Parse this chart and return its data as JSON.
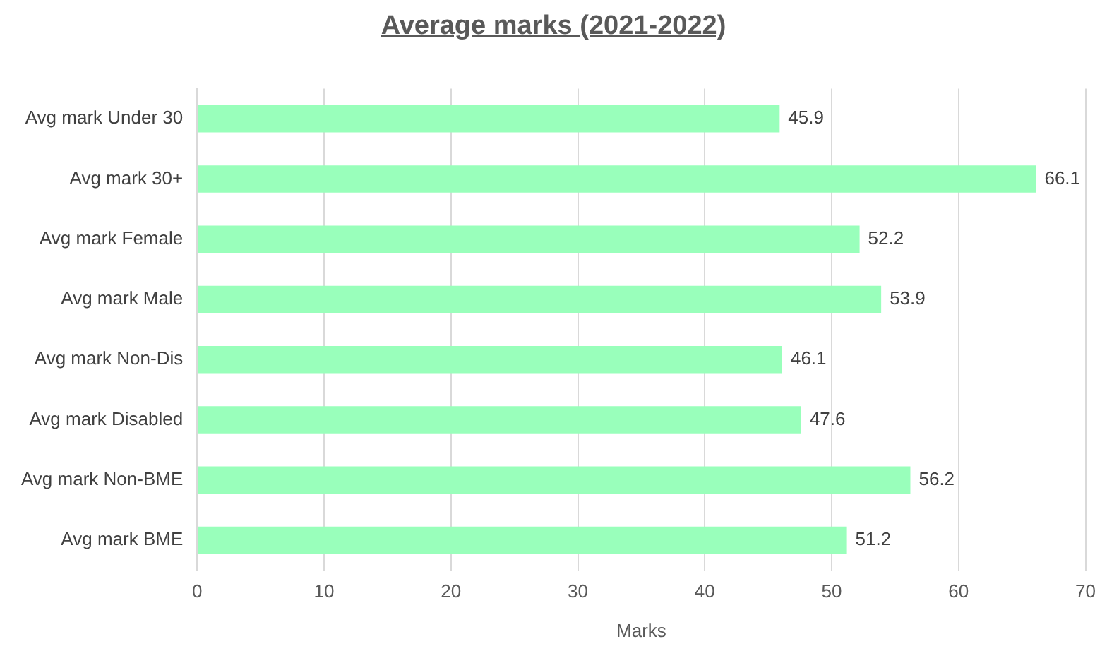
{
  "chart_data": {
    "type": "bar",
    "orientation": "horizontal",
    "title": "Average marks (2021-2022)",
    "xlabel": "Marks",
    "categories": [
      "Avg mark Under 30",
      "Avg mark 30+",
      "Avg mark Female",
      "Avg mark Male",
      "Avg mark Non-Dis",
      "Avg mark Disabled",
      "Avg mark Non-BME",
      "Avg mark BME"
    ],
    "values": [
      45.9,
      66.1,
      52.2,
      53.9,
      46.1,
      47.6,
      56.2,
      51.2
    ],
    "color": "#99ffbb",
    "xlim": [
      0,
      70
    ],
    "xticks": [
      0,
      10,
      20,
      30,
      40,
      50,
      60,
      70
    ],
    "grid": "x",
    "legend": false,
    "data_labels": true
  }
}
